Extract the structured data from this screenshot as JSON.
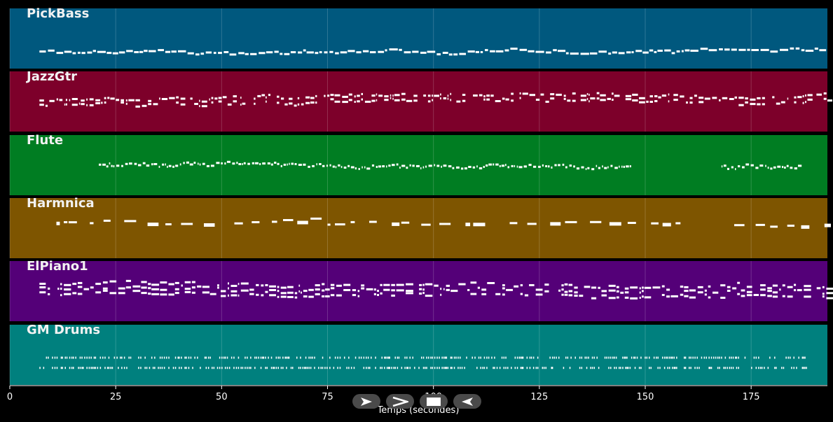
{
  "xaxis": {
    "label": "Temps (secondes)",
    "range": [
      0,
      193
    ],
    "ticks": [
      {
        "value": 0,
        "label": "0"
      },
      {
        "value": 25,
        "label": "25"
      },
      {
        "value": 50,
        "label": "50"
      },
      {
        "value": 75,
        "label": "75"
      },
      {
        "value": 100,
        "label": "100"
      },
      {
        "value": 125,
        "label": "125"
      },
      {
        "value": 150,
        "label": "150"
      },
      {
        "value": 175,
        "label": "175"
      }
    ]
  },
  "tracks": [
    {
      "name": "PickBass",
      "color": "#00587e"
    },
    {
      "name": "JazzGtr",
      "color": "#7d002a"
    },
    {
      "name": "Flute",
      "color": "#007d22"
    },
    {
      "name": "Harmnica",
      "color": "#7e5500"
    },
    {
      "name": "ElPiano1",
      "color": "#540078"
    },
    {
      "name": "GM Drums",
      "color": "#00807e"
    }
  ],
  "transport": [
    {
      "name": "rewind-icon"
    },
    {
      "name": "fast-forward-icon"
    },
    {
      "name": "stop-icon"
    },
    {
      "name": "back-icon"
    }
  ]
}
